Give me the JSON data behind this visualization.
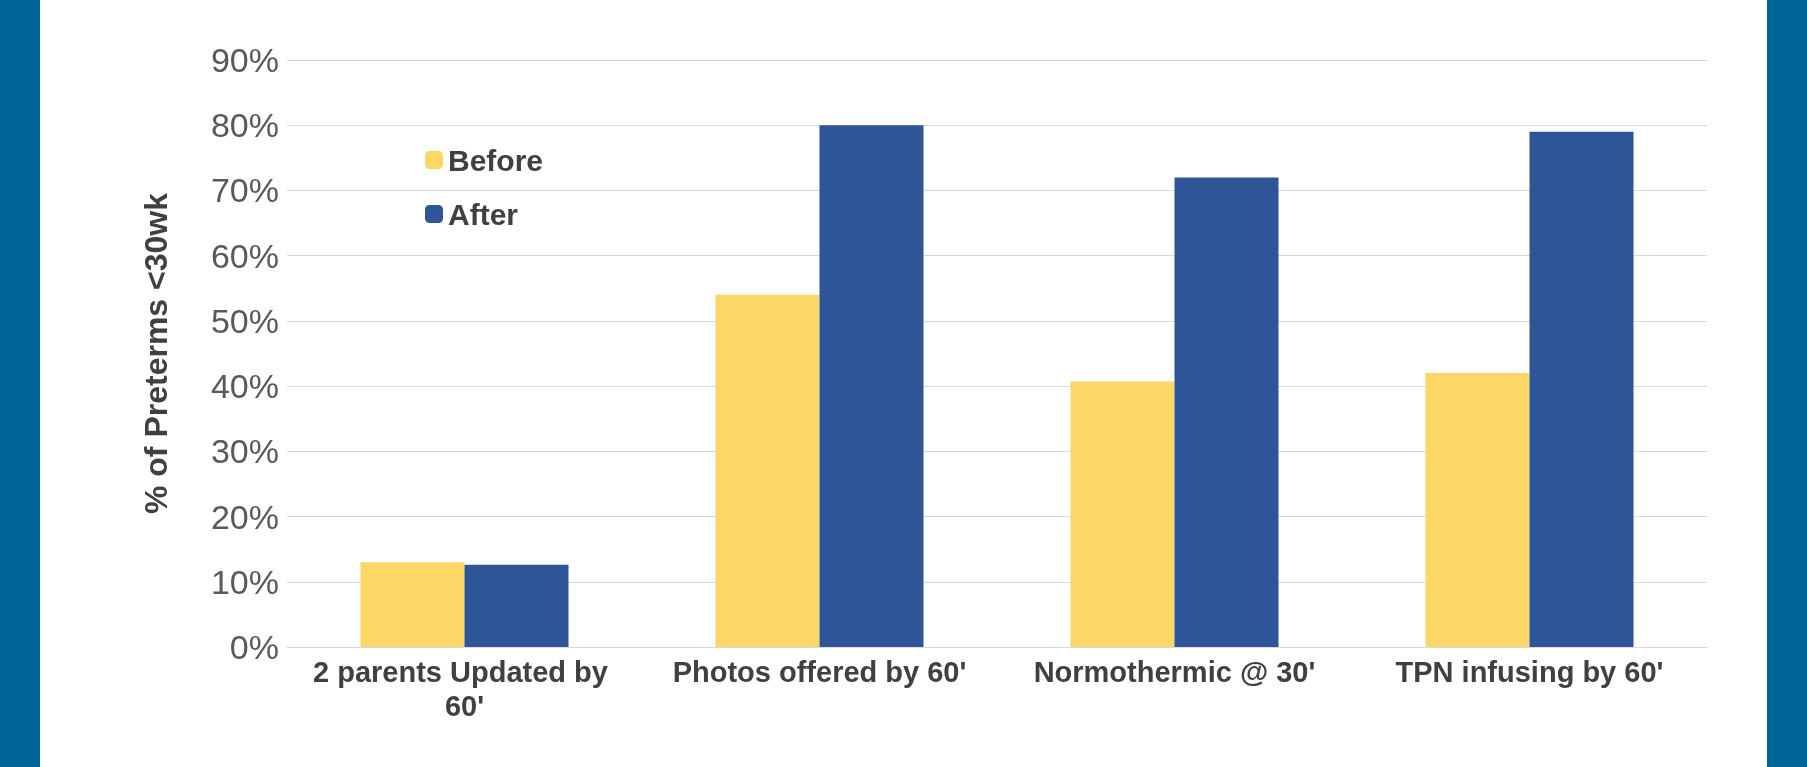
{
  "chart_data": {
    "type": "bar",
    "categories": [
      "2 parents Updated by 60'",
      "Photos offered by 60'",
      "Normothermic @ 30'",
      "TPN infusing by 60'"
    ],
    "series": [
      {
        "name": "Before",
        "color": "#fdd766",
        "values": [
          13,
          54,
          40.7,
          42
        ]
      },
      {
        "name": "After",
        "color": "#2e5597",
        "values": [
          12.6,
          80,
          72,
          79
        ]
      }
    ],
    "ylabel": "% of Preterms <30wk",
    "ylim": [
      0,
      90
    ],
    "yticks": [
      {
        "value": 0,
        "label": "0%"
      },
      {
        "value": 10,
        "label": "10%"
      },
      {
        "value": 20,
        "label": "20%"
      },
      {
        "value": 30,
        "label": "30%"
      },
      {
        "value": 40,
        "label": "40%"
      },
      {
        "value": 50,
        "label": "50%"
      },
      {
        "value": 60,
        "label": "60%"
      },
      {
        "value": 70,
        "label": "70%"
      },
      {
        "value": 80,
        "label": "80%"
      },
      {
        "value": 90,
        "label": "90%"
      }
    ],
    "grid": "y",
    "legend": "top left"
  }
}
